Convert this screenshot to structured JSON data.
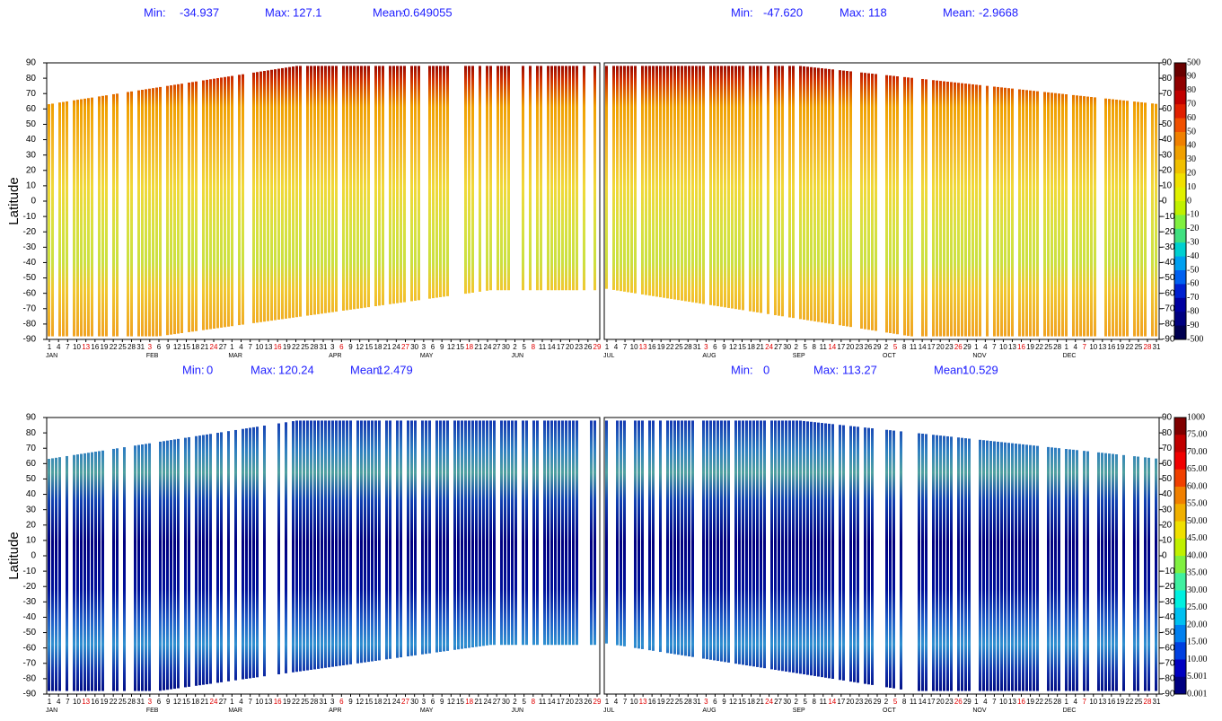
{
  "y_axis_label": "Latitude",
  "stat_labels": {
    "min": "Min:",
    "max": "Max:",
    "mean": "Mean:"
  },
  "stat_color": "#2020ff",
  "panels": [
    {
      "min": "-34.937",
      "max": "127.1",
      "mean": "-0.649055"
    },
    {
      "min": "-47.620",
      "max": "118",
      "mean": "-2.9668"
    },
    {
      "min": "0",
      "max": "120.24",
      "mean": "12.479"
    },
    {
      "min": "0",
      "max": "113.27",
      "mean": "10.529"
    }
  ],
  "yticks": [
    90,
    80,
    70,
    60,
    50,
    40,
    30,
    20,
    10,
    0,
    -10,
    -20,
    -30,
    -40,
    -50,
    -60,
    -70,
    -80,
    -90
  ],
  "highlight_color": "#e00000",
  "x_axes": [
    {
      "months": [
        {
          "name": "JAN",
          "days": [
            1,
            4,
            7,
            10,
            13,
            16,
            19,
            22,
            25,
            28,
            31
          ],
          "highlight_days": [
            13
          ]
        },
        {
          "name": "FEB",
          "days": [
            3,
            6,
            9,
            12,
            15,
            18,
            21,
            24,
            27
          ],
          "highlight_days": [
            3,
            24
          ]
        },
        {
          "name": "MAR",
          "days": [
            1,
            4,
            7,
            10,
            13,
            16,
            19,
            22,
            25,
            28,
            31
          ],
          "highlight_days": [
            16
          ]
        },
        {
          "name": "APR",
          "days": [
            3,
            6,
            9,
            12,
            15,
            18,
            21,
            24,
            27,
            30
          ],
          "highlight_days": [
            6,
            27
          ]
        },
        {
          "name": "MAY",
          "days": [
            3,
            6,
            9,
            12,
            15,
            18,
            21,
            24,
            27,
            30
          ],
          "highlight_days": [
            18
          ]
        },
        {
          "name": "JUN",
          "days": [
            2,
            5,
            8,
            11,
            14,
            17,
            20,
            23,
            26,
            29
          ],
          "highlight_days": [
            8,
            29
          ]
        }
      ]
    },
    {
      "months": [
        {
          "name": "JUL",
          "days": [
            1,
            4,
            7,
            10,
            13,
            16,
            19,
            22,
            25,
            28,
            31
          ],
          "highlight_days": [
            13
          ]
        },
        {
          "name": "AUG",
          "days": [
            3,
            6,
            9,
            12,
            15,
            18,
            21,
            24,
            27,
            30
          ],
          "highlight_days": [
            3,
            24
          ]
        },
        {
          "name": "SEP",
          "days": [
            2,
            5,
            8,
            11,
            14,
            17,
            20,
            23,
            26,
            29
          ],
          "highlight_days": [
            14
          ]
        },
        {
          "name": "OCT",
          "days": [
            2,
            5,
            8,
            11,
            14,
            17,
            20,
            23,
            26,
            29
          ],
          "highlight_days": [
            5,
            26
          ]
        },
        {
          "name": "NOV",
          "days": [
            1,
            4,
            7,
            10,
            13,
            16,
            19,
            22,
            25,
            28
          ],
          "highlight_days": [
            16
          ]
        },
        {
          "name": "DEC",
          "days": [
            1,
            4,
            7,
            10,
            13,
            16,
            19,
            22,
            25,
            28,
            31
          ],
          "highlight_days": [
            7,
            28
          ]
        }
      ]
    }
  ],
  "colorbars": [
    {
      "labels": [
        500,
        90,
        80,
        70,
        60,
        50,
        40,
        30,
        20,
        10,
        0,
        -10,
        -20,
        -30,
        -40,
        -50,
        -60,
        -70,
        -80,
        -90,
        -500
      ],
      "colors": [
        "#6a0000",
        "#900000",
        "#c00000",
        "#e02000",
        "#f05000",
        "#f08000",
        "#f0a000",
        "#f0c000",
        "#f0e000",
        "#e0f000",
        "#c0f000",
        "#80f040",
        "#40e080",
        "#00d0d0",
        "#00a0f0",
        "#0060f0",
        "#0020d0",
        "#0000a0",
        "#000080",
        "#000050"
      ]
    },
    {
      "labels": [
        1000,
        {
          "value": 75,
          "label": "75.00"
        },
        {
          "value": 70,
          "label": "70.00"
        },
        {
          "value": 65,
          "label": "65.00"
        },
        {
          "value": 60,
          "label": "60.00"
        },
        {
          "value": 55,
          "label": "55.00"
        },
        {
          "value": 50,
          "label": "50.00"
        },
        {
          "value": 45,
          "label": "45.00"
        },
        {
          "value": 40,
          "label": "40.00"
        },
        {
          "value": 35,
          "label": "35.00"
        },
        {
          "value": 30,
          "label": "30.00"
        },
        {
          "value": 25,
          "label": "25.00"
        },
        {
          "value": 20,
          "label": "20.00"
        },
        {
          "value": 15,
          "label": "15.00"
        },
        {
          "value": 10,
          "label": "10.00"
        },
        5.001,
        0.001
      ],
      "colors": [
        "#800000",
        "#c00000",
        "#f00000",
        "#f04000",
        "#f08000",
        "#f0b000",
        "#f0e000",
        "#c0f000",
        "#80f040",
        "#40f0a0",
        "#00f0e0",
        "#00c0f0",
        "#0080f0",
        "#0040e0",
        "#0000c0",
        "#000080"
      ]
    }
  ]
}
